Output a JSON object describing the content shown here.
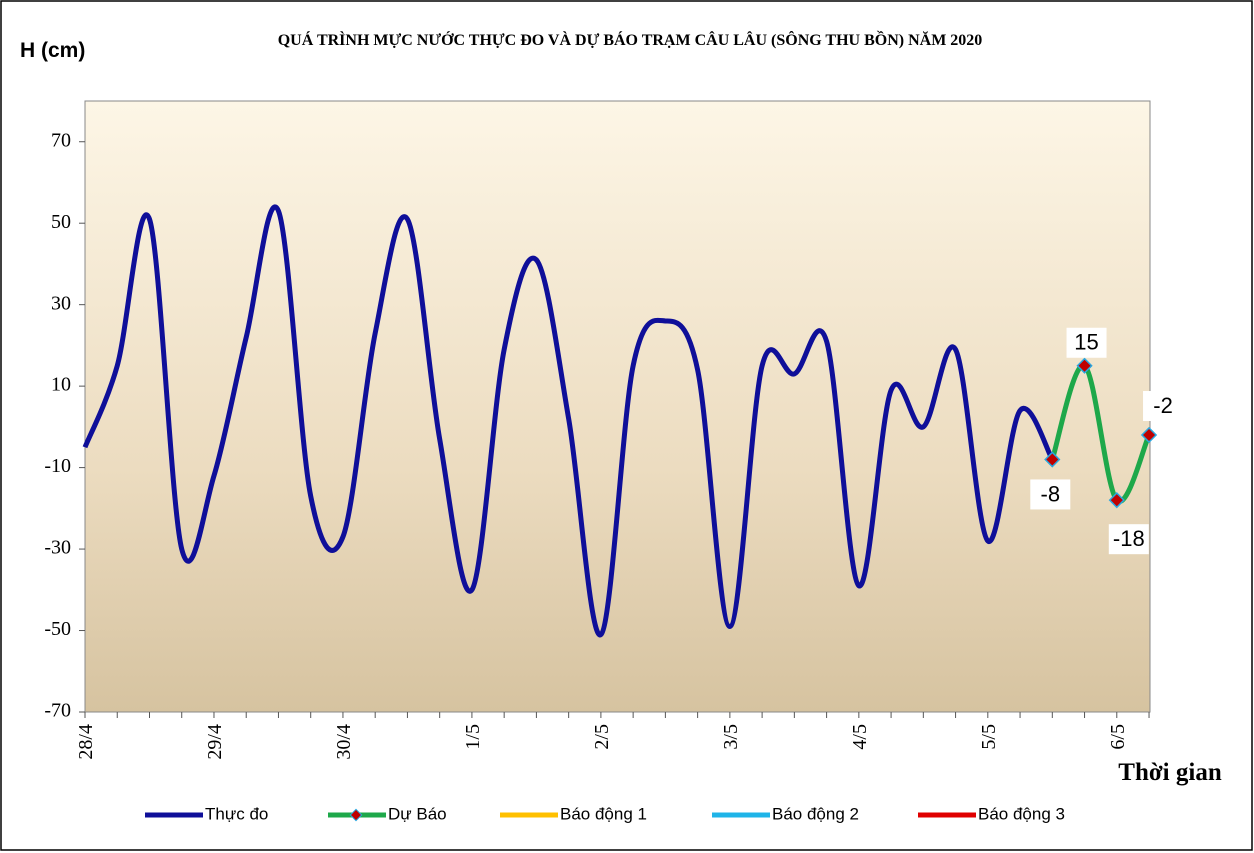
{
  "chart_data": {
    "type": "line",
    "title": "QUÁ TRÌNH MỰC NƯỚC THỰC ĐO VÀ DỰ BÁO TRẠM CÂU LÂU (SÔNG THU BỒN) NĂM  2020",
    "y_label": "H (cm)",
    "x_label": "Thời gian",
    "categories": [
      "28/4",
      null,
      null,
      null,
      "29/4",
      null,
      null,
      null,
      "30/4",
      null,
      null,
      null,
      "1/5",
      null,
      null,
      null,
      "2/5",
      null,
      null,
      null,
      "3/5",
      null,
      null,
      null,
      "4/5",
      null,
      null,
      null,
      "5/5",
      null,
      null,
      null,
      "6/5",
      null
    ],
    "ylim": [
      -70,
      80
    ],
    "yticks": [
      -70,
      -50,
      -30,
      -10,
      10,
      30,
      50,
      70
    ],
    "series": [
      {
        "name": "Thực đo",
        "color": "#0f0f99",
        "values": [
          -5,
          15,
          51,
          -30,
          -12,
          22,
          53,
          -17,
          -27,
          23,
          51,
          -3,
          -40,
          19,
          41,
          2,
          -51,
          15,
          26,
          14,
          -49,
          15,
          13,
          21,
          -39,
          9,
          0,
          19,
          -28,
          4,
          -8,
          null,
          null,
          null
        ]
      },
      {
        "name": "Dự Báo",
        "color": "#1ea84a",
        "values": [
          null,
          null,
          null,
          null,
          null,
          null,
          null,
          null,
          null,
          null,
          null,
          null,
          null,
          null,
          null,
          null,
          null,
          null,
          null,
          null,
          null,
          null,
          null,
          null,
          null,
          null,
          null,
          null,
          null,
          null,
          -8,
          15,
          -18,
          -2
        ],
        "markers": true,
        "data_labels": true
      },
      {
        "name": "Báo động 1",
        "color": "#ffc000",
        "values": [
          null,
          null,
          null,
          null,
          null,
          null,
          null,
          null,
          null,
          null,
          null,
          null,
          null,
          null,
          null,
          null,
          null,
          null,
          null,
          null,
          null,
          null,
          null,
          null,
          null,
          null,
          null,
          null,
          null,
          null,
          null,
          null,
          null,
          null
        ]
      },
      {
        "name": "Báo động 2",
        "color": "#1fb4e8",
        "values": [
          null,
          null,
          null,
          null,
          null,
          null,
          null,
          null,
          null,
          null,
          null,
          null,
          null,
          null,
          null,
          null,
          null,
          null,
          null,
          null,
          null,
          null,
          null,
          null,
          null,
          null,
          null,
          null,
          null,
          null,
          null,
          null,
          null,
          null
        ]
      },
      {
        "name": "Báo động 3",
        "color": "#e00000",
        "values": [
          null,
          null,
          null,
          null,
          null,
          null,
          null,
          null,
          null,
          null,
          null,
          null,
          null,
          null,
          null,
          null,
          null,
          null,
          null,
          null,
          null,
          null,
          null,
          null,
          null,
          null,
          null,
          null,
          null,
          null,
          null,
          null,
          null,
          null
        ]
      }
    ]
  }
}
